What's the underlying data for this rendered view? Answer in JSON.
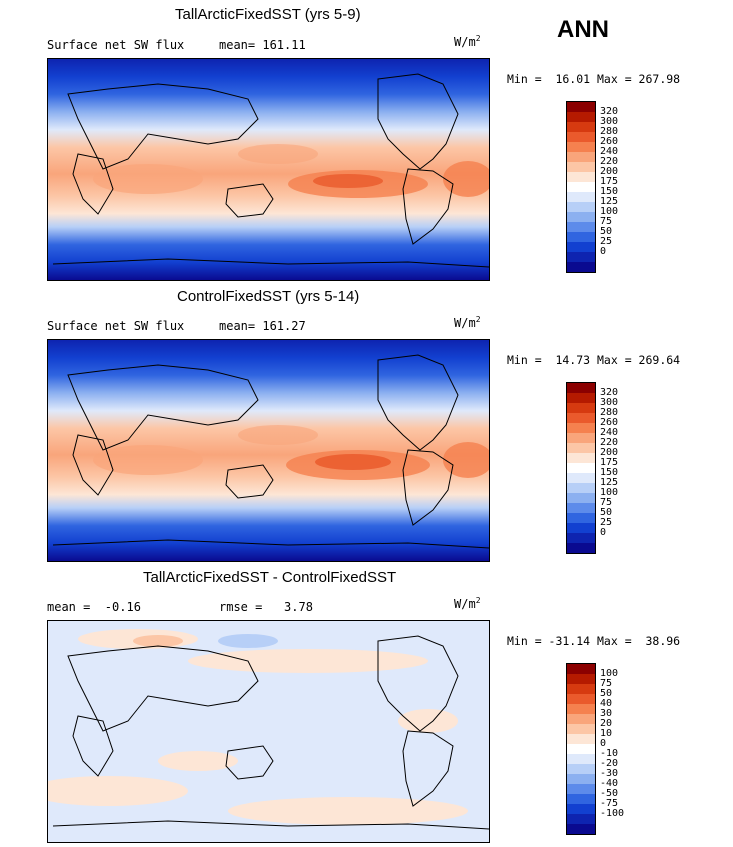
{
  "season": "ANN",
  "panels": [
    {
      "title": "TallArcticFixedSST (yrs 5-9)",
      "left_label": "Surface net SW flux",
      "right_label": "mean= 161.11",
      "units": "W/m",
      "units_exp": "2",
      "minmax": "Min =  16.01 Max = 267.98",
      "colorbar": {
        "labels": [
          "320",
          "300",
          "280",
          "260",
          "240",
          "220",
          "200",
          "175",
          "150",
          "125",
          "100",
          "75",
          "50",
          "25",
          "0"
        ],
        "colors": [
          "#8b0000",
          "#b51a00",
          "#d63a10",
          "#ea5a2c",
          "#f5814f",
          "#f9a57b",
          "#fcc6a6",
          "#fde6d6",
          "#ffffff",
          "#dfe9fb",
          "#b7cff7",
          "#8cb0f0",
          "#5d8bea",
          "#3065e0",
          "#1240d0",
          "#0e24b0",
          "#0a0a90"
        ]
      }
    },
    {
      "title": "ControlFixedSST (yrs 5-14)",
      "left_label": "Surface net SW flux",
      "right_label": "mean= 161.27",
      "units": "W/m",
      "units_exp": "2",
      "minmax": "Min =  14.73 Max = 269.64",
      "colorbar": {
        "labels": [
          "320",
          "300",
          "280",
          "260",
          "240",
          "220",
          "200",
          "175",
          "150",
          "125",
          "100",
          "75",
          "50",
          "25",
          "0"
        ],
        "colors": [
          "#8b0000",
          "#b51a00",
          "#d63a10",
          "#ea5a2c",
          "#f5814f",
          "#f9a57b",
          "#fcc6a6",
          "#fde6d6",
          "#ffffff",
          "#dfe9fb",
          "#b7cff7",
          "#8cb0f0",
          "#5d8bea",
          "#3065e0",
          "#1240d0",
          "#0e24b0",
          "#0a0a90"
        ]
      }
    },
    {
      "title": "TallArcticFixedSST - ControlFixedSST",
      "left_label": "mean =  -0.16",
      "right_label": "rmse =   3.78",
      "units": "W/m",
      "units_exp": "2",
      "minmax": "Min = -31.14 Max =  38.96",
      "colorbar": {
        "labels": [
          "100",
          "75",
          "50",
          "40",
          "30",
          "20",
          "10",
          "0",
          "-10",
          "-20",
          "-30",
          "-40",
          "-50",
          "-75",
          "-100"
        ],
        "colors": [
          "#8b0000",
          "#b51a00",
          "#d63a10",
          "#ea5a2c",
          "#f5814f",
          "#f9a57b",
          "#fcc6a6",
          "#fde6d6",
          "#ffffff",
          "#dfe9fb",
          "#b7cff7",
          "#8cb0f0",
          "#5d8bea",
          "#3065e0",
          "#1240d0",
          "#0e24b0",
          "#0a0a90"
        ]
      }
    }
  ]
}
